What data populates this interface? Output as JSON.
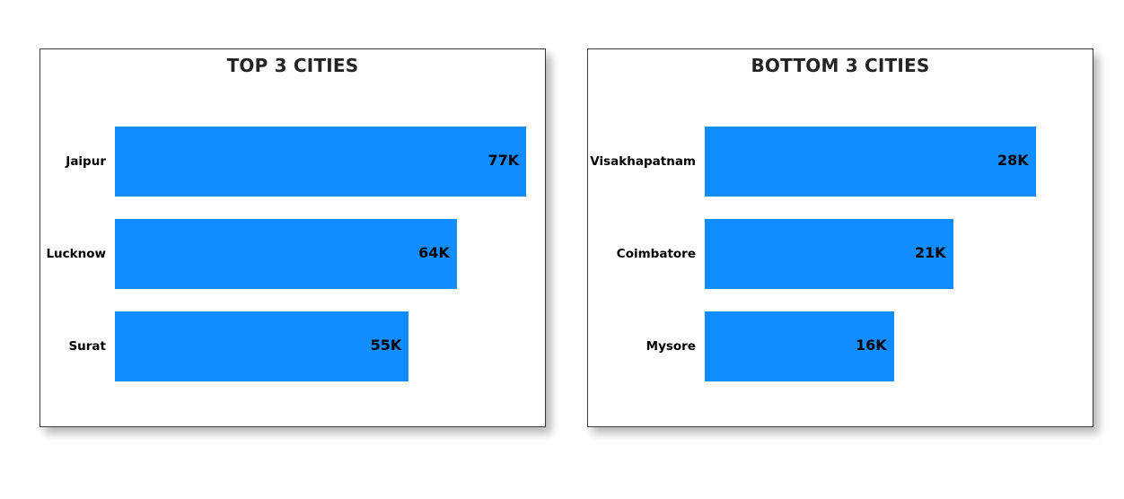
{
  "chart_data": [
    {
      "type": "bar",
      "orientation": "horizontal",
      "title": "TOP 3 CITIES",
      "categories": [
        "Jaipur",
        "Lucknow",
        "Surat"
      ],
      "values": [
        77,
        64,
        55
      ],
      "value_labels": [
        "77K",
        "64K",
        "55K"
      ],
      "unit": "K",
      "bar_color": "#118dff",
      "xlim": [
        0,
        80
      ],
      "grid": false,
      "legend": "none"
    },
    {
      "type": "bar",
      "orientation": "horizontal",
      "title": "BOTTOM 3 CITIES",
      "categories": [
        "Visakhapatnam",
        "Coimbatore",
        "Mysore"
      ],
      "values": [
        28,
        21,
        16
      ],
      "value_labels": [
        "28K",
        "21K",
        "16K"
      ],
      "unit": "K",
      "bar_color": "#118dff",
      "xlim": [
        0,
        30
      ],
      "grid": false,
      "legend": "none"
    }
  ]
}
